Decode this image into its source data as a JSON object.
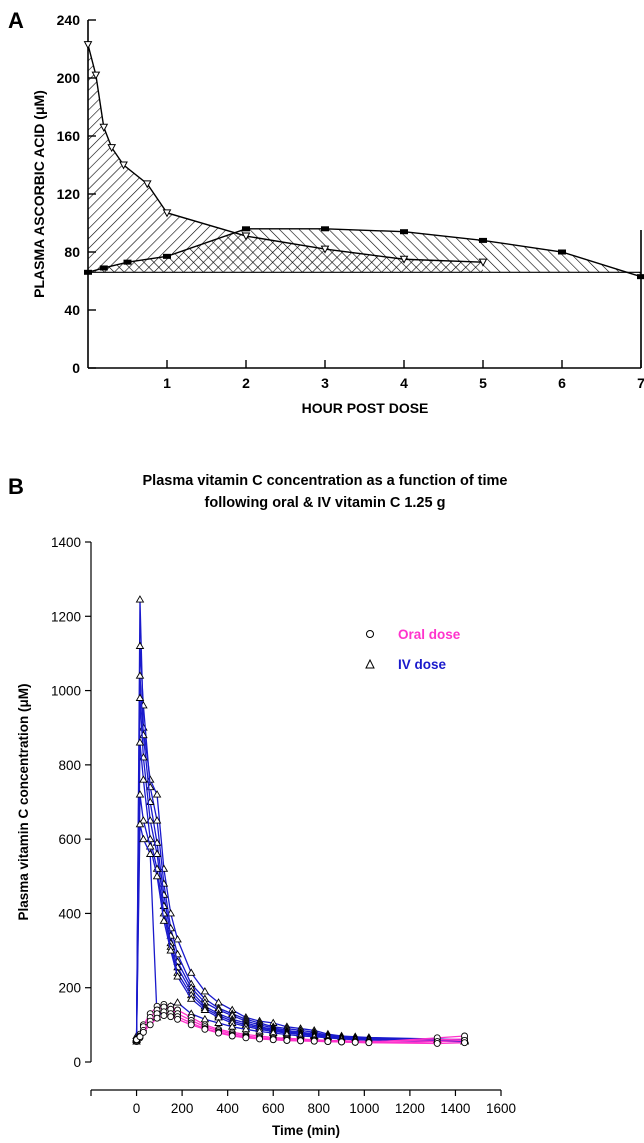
{
  "panels": {
    "a_letter": "A",
    "b_letter": "B"
  },
  "chart_data": [
    {
      "type": "line",
      "xlabel": "HOUR POST DOSE",
      "ylabel": "PLASMA ASCORBIC ACID (μM)",
      "xlim": [
        0,
        7
      ],
      "ylim": [
        0,
        240
      ],
      "x_ticks": [
        1,
        2,
        3,
        4,
        5,
        6,
        7
      ],
      "y_ticks": [
        0,
        40,
        80,
        120,
        160,
        200,
        240
      ],
      "grid": false,
      "series": [
        {
          "marker": "triangle-down",
          "x": [
            0,
            0.1,
            0.2,
            0.3,
            0.45,
            0.75,
            1,
            2,
            3,
            4,
            5
          ],
          "y": [
            223,
            202,
            166,
            152,
            140,
            127,
            107,
            91,
            82,
            75,
            73
          ]
        },
        {
          "marker": "bar",
          "x": [
            0,
            0.2,
            0.5,
            1,
            2,
            3,
            4,
            5,
            6,
            7
          ],
          "y": [
            66,
            69,
            73,
            77,
            96,
            96,
            94,
            88,
            80,
            63
          ]
        }
      ],
      "baseline": 66
    },
    {
      "type": "line",
      "title_lines": [
        "Plasma vitamin C concentration as a function of time",
        "following oral & IV vitamin C 1.25 g"
      ],
      "xlabel": "Time (min)",
      "ylabel": "Plasma vitamin C concentration (μM)",
      "xlim": [
        -200,
        1600
      ],
      "ylim": [
        0,
        1400
      ],
      "x_ticks": [
        0,
        200,
        400,
        600,
        800,
        1000,
        1200,
        1400,
        1600
      ],
      "y_ticks": [
        0,
        200,
        400,
        600,
        800,
        1000,
        1200,
        1400
      ],
      "grid": false,
      "legend_position": "top-right",
      "legend": [
        {
          "label": "Oral dose",
          "marker": "circle",
          "color": "#ff33cc"
        },
        {
          "label": "IV dose",
          "marker": "triangle",
          "color": "#1a1acc"
        }
      ],
      "x": [
        0,
        15,
        30,
        60,
        90,
        120,
        150,
        180,
        240,
        300,
        360,
        420,
        480,
        540,
        600,
        660,
        720,
        780,
        840,
        900,
        960,
        1020,
        1320,
        1440
      ],
      "series": [
        {
          "group": "IV",
          "color": "#1a1acc",
          "y": [
            60,
            1245,
            900,
            760,
            720,
            520,
            400,
            330,
            240,
            190,
            160,
            140,
            120,
            110,
            105,
            95,
            90,
            85,
            75,
            70,
            68,
            66,
            62,
            60
          ]
        },
        {
          "group": "IV",
          "color": "#1a1acc",
          "y": [
            70,
            1120,
            960,
            740,
            650,
            480,
            360,
            290,
            210,
            170,
            145,
            130,
            115,
            105,
            95,
            90,
            85,
            80,
            72,
            68,
            66,
            64,
            60,
            58
          ]
        },
        {
          "group": "IV",
          "color": "#1a1acc",
          "y": [
            65,
            1040,
            880,
            700,
            590,
            450,
            340,
            270,
            200,
            160,
            140,
            125,
            110,
            100,
            92,
            85,
            80,
            76,
            70,
            66,
            64,
            62,
            60,
            58
          ]
        },
        {
          "group": "IV",
          "color": "#1a1acc",
          "y": [
            60,
            980,
            820,
            650,
            560,
            420,
            320,
            255,
            190,
            150,
            130,
            115,
            105,
            95,
            88,
            82,
            78,
            74,
            70,
            66,
            64,
            62,
            60,
            58
          ]
        },
        {
          "group": "IV",
          "color": "#1a1acc",
          "y": [
            55,
            860,
            760,
            600,
            520,
            400,
            310,
            240,
            180,
            145,
            125,
            110,
            100,
            92,
            85,
            80,
            76,
            72,
            68,
            65,
            63,
            61,
            58,
            56
          ]
        },
        {
          "group": "IV",
          "color": "#1a1acc",
          "y": [
            60,
            720,
            650,
            580,
            500,
            380,
            300,
            230,
            170,
            140,
            120,
            105,
            96,
            88,
            82,
            78,
            74,
            70,
            66,
            63,
            61,
            60,
            57,
            55
          ]
        },
        {
          "group": "IV",
          "color": "#1a1acc",
          "y": [
            62,
            640,
            600,
            560,
            120,
            140,
            150,
            160,
            130,
            115,
            105,
            95,
            88,
            82,
            78,
            74,
            70,
            68,
            65,
            62,
            60,
            59,
            56,
            55
          ]
        },
        {
          "group": "Oral",
          "color": "#ff33cc",
          "y": [
            60,
            75,
            100,
            130,
            150,
            155,
            150,
            140,
            120,
            100,
            88,
            80,
            74,
            70,
            66,
            64,
            62,
            60,
            58,
            57,
            56,
            55,
            60,
            62
          ]
        },
        {
          "group": "Oral",
          "color": "#ff33cc",
          "y": [
            55,
            70,
            95,
            120,
            140,
            148,
            142,
            130,
            112,
            95,
            84,
            76,
            70,
            66,
            63,
            61,
            59,
            58,
            56,
            55,
            54,
            53,
            65,
            70
          ]
        },
        {
          "group": "Oral",
          "color": "#ff33cc",
          "y": [
            58,
            65,
            85,
            110,
            130,
            135,
            130,
            122,
            105,
            90,
            80,
            72,
            67,
            63,
            60,
            58,
            57,
            56,
            55,
            54,
            53,
            52,
            55,
            58
          ]
        },
        {
          "group": "Oral",
          "color": "#ff33cc",
          "y": [
            60,
            68,
            80,
            100,
            118,
            125,
            122,
            115,
            100,
            88,
            78,
            70,
            65,
            62,
            60,
            58,
            57,
            56,
            55,
            54,
            53,
            52,
            50,
            52
          ]
        }
      ]
    }
  ]
}
